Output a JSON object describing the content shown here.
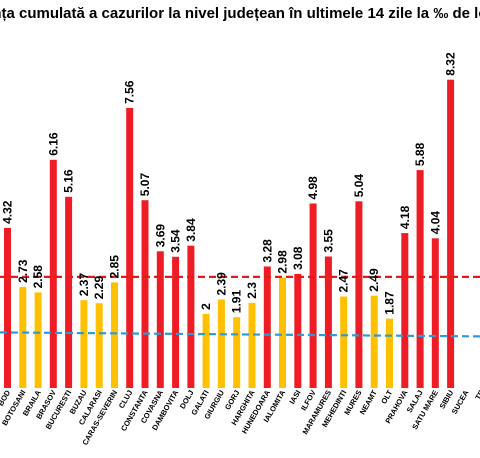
{
  "chart_data": {
    "type": "bar",
    "title": "ența cumulată a cazurilor la nivel județean în ultimele 14 zile la ‰ de locu",
    "xlabel": "",
    "ylabel": "",
    "ylim": [
      0,
      9
    ],
    "grid": false,
    "categories": [
      "BOD",
      "BOTOSANI",
      "BRAILA",
      "BRASOV",
      "BUCURESTI",
      "BUZAU",
      "CALARASI",
      "CARAS-SEVERIN",
      "CLUJ",
      "CONSTANTA",
      "COVASNA",
      "DAMBOVITA",
      "DOLJ",
      "GALATI",
      "GIURGIU",
      "GORJ",
      "HARGHITA",
      "HUNEDOARA",
      "IALOMITA",
      "IASI",
      "ILFOV",
      "MARAMURES",
      "MEHEDINTI",
      "MURES",
      "NEAMT",
      "OLT",
      "PRAHOVA",
      "SALAJ",
      "SATU MARE",
      "SIBIU",
      "SUCEA",
      "TE"
    ],
    "values": [
      4.32,
      2.73,
      2.58,
      6.16,
      5.16,
      2.37,
      2.29,
      2.85,
      7.56,
      5.07,
      3.69,
      3.54,
      3.84,
      2,
      2.39,
      1.91,
      2.3,
      3.28,
      2.98,
      3.08,
      4.98,
      3.55,
      2.47,
      5.04,
      2.49,
      1.87,
      4.18,
      5.88,
      4.04,
      8.32,
      null,
      null
    ],
    "value_labels": [
      "4.32",
      "2.73",
      "2.58",
      "6.16",
      "5.16",
      "2.37",
      "2.29",
      "2.85",
      "7.56",
      "5.07",
      "3.69",
      "3.54",
      "3.84",
      "2",
      "2.39",
      "1.91",
      "2.3",
      "3.28",
      "2.98",
      "3.08",
      "4.98",
      "3.55",
      "2.47",
      "5.04",
      "2.49",
      "1.87",
      "4.18",
      "5.88",
      "4.04",
      "8.32",
      "",
      ""
    ],
    "colors": {
      "high": "#ee1c24",
      "medium": "#ffc000",
      "line_red": "#e31a1c",
      "line_blue": "#2e9bd6"
    },
    "bar_color_level": [
      "high",
      "medium",
      "medium",
      "high",
      "high",
      "medium",
      "medium",
      "medium",
      "high",
      "high",
      "high",
      "high",
      "high",
      "medium",
      "medium",
      "medium",
      "medium",
      "high",
      "medium",
      "high",
      "high",
      "high",
      "medium",
      "high",
      "medium",
      "medium",
      "high",
      "high",
      "high",
      "high",
      "",
      ""
    ],
    "thresholds": [
      {
        "value": 3,
        "color": "line_red",
        "style": "dashed"
      },
      {
        "value": 1.5,
        "color": "line_blue",
        "style": "dashed"
      }
    ]
  }
}
